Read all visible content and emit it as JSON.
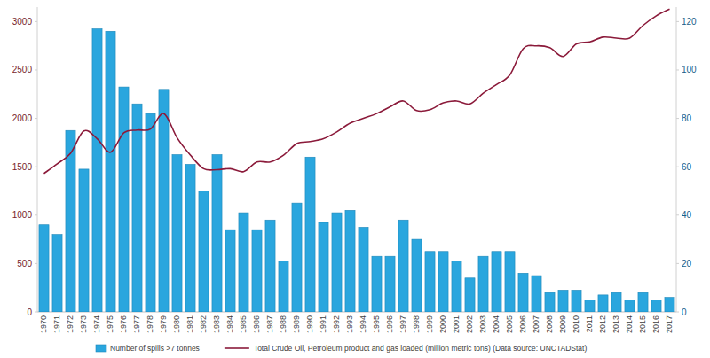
{
  "chart_data": {
    "type": "bar",
    "categories": [
      "1970",
      "1971",
      "1972",
      "1973",
      "1974",
      "1975",
      "1976",
      "1977",
      "1978",
      "1979",
      "1980",
      "1981",
      "1982",
      "1983",
      "1984",
      "1985",
      "1986",
      "1987",
      "1988",
      "1989",
      "1990",
      "1991",
      "1992",
      "1993",
      "1994",
      "1995",
      "1996",
      "1997",
      "1998",
      "1999",
      "2000",
      "2001",
      "2002",
      "2003",
      "2004",
      "2005",
      "2006",
      "2007",
      "2008",
      "2009",
      "2010",
      "2011",
      "2012",
      "2013",
      "2014",
      "2015",
      "2016",
      "2017"
    ],
    "series": [
      {
        "name": "Number of spills >7 tonnes",
        "type": "bar",
        "color": "#2aa6de",
        "axis": "y2",
        "values": [
          36,
          32,
          75,
          59,
          117,
          116,
          93,
          86,
          82,
          92,
          65,
          61,
          50,
          65,
          34,
          41,
          34,
          38,
          21,
          45,
          64,
          37,
          41,
          42,
          35,
          23,
          23,
          38,
          30,
          25,
          25,
          21,
          14,
          23,
          25,
          25,
          16,
          15,
          8,
          9,
          9,
          5,
          7,
          8,
          5,
          8,
          5,
          6
        ]
      },
      {
        "name": "Total Crude Oil, Petroleum product and gas loaded (million metric tons) (Data source: UNCTADStat)",
        "type": "line",
        "color": "#8b1a3a",
        "values": [
          1430,
          1530,
          1640,
          1870,
          1790,
          1650,
          1850,
          1880,
          1890,
          2050,
          1800,
          1620,
          1480,
          1470,
          1480,
          1450,
          1550,
          1550,
          1620,
          1740,
          1760,
          1790,
          1860,
          1950,
          2000,
          2050,
          2120,
          2180,
          2080,
          2090,
          2160,
          2180,
          2150,
          2260,
          2350,
          2450,
          2720,
          2750,
          2730,
          2640,
          2770,
          2790,
          2840,
          2830,
          2830,
          2960,
          3060,
          3130
        ]
      }
    ],
    "ylim": [
      0,
      3150
    ],
    "yticks": [
      0,
      500,
      1000,
      1500,
      2000,
      2500,
      3000
    ],
    "y2lim": [
      0,
      126
    ],
    "y2ticks": [
      0,
      20,
      40,
      60,
      80,
      100,
      120
    ],
    "grid": false,
    "legend": "bottom"
  }
}
